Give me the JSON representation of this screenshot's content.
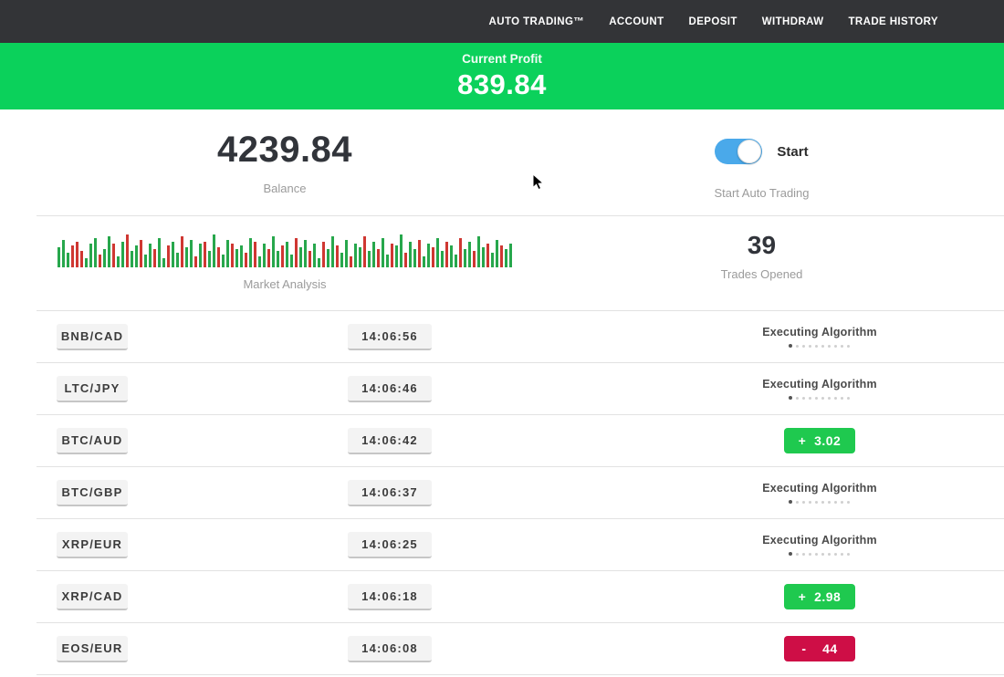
{
  "nav": {
    "items": [
      "AUTO TRADING™",
      "ACCOUNT",
      "DEPOSIT",
      "WITHDRAW",
      "TRADE HISTORY"
    ]
  },
  "profit_banner": {
    "label": "Current Profit",
    "value": "839.84"
  },
  "stats": {
    "balance": {
      "value": "4239.84",
      "label": "Balance"
    },
    "auto_trading": {
      "toggle_label": "Start",
      "label": "Start Auto Trading",
      "toggle_on": true
    },
    "market_analysis": {
      "label": "Market Analysis"
    },
    "trades_opened": {
      "value": "39",
      "label": "Trades Opened"
    }
  },
  "chart_data": {
    "type": "bar",
    "title": "Market Analysis",
    "xlabel": "",
    "ylabel": "",
    "ylim": [
      0,
      40
    ],
    "axes_hidden": true,
    "values": [
      22,
      30,
      16,
      24,
      28,
      18,
      10,
      26,
      32,
      14,
      20,
      34,
      26,
      12,
      28,
      36,
      18,
      24,
      30,
      14,
      26,
      20,
      32,
      10,
      24,
      28,
      16,
      34,
      22,
      30,
      12,
      26,
      28,
      18,
      36,
      22,
      14,
      30,
      26,
      20,
      24,
      16,
      32,
      28,
      12,
      26,
      20,
      34,
      18,
      24,
      28,
      14,
      32,
      22,
      30,
      18,
      26,
      10,
      28,
      20,
      34,
      24,
      16,
      30,
      12,
      26,
      22,
      34,
      18,
      28,
      20,
      32,
      14,
      26,
      24,
      36,
      16,
      28,
      20,
      30,
      12,
      26,
      22,
      32,
      18,
      28,
      24,
      14,
      32,
      20,
      28,
      18,
      34,
      22,
      26,
      16,
      30,
      24,
      20,
      26
    ],
    "colors": [
      "g",
      "g",
      "g",
      "r",
      "r",
      "r",
      "g",
      "g",
      "g",
      "r",
      "g",
      "g",
      "r",
      "g",
      "g",
      "r",
      "g",
      "g",
      "r",
      "g",
      "g",
      "r",
      "g",
      "g",
      "r",
      "g",
      "g",
      "r",
      "g",
      "g",
      "r",
      "g",
      "r",
      "g",
      "g",
      "r",
      "g",
      "g",
      "r",
      "g",
      "g",
      "r",
      "g",
      "r",
      "g",
      "g",
      "r",
      "g",
      "g",
      "r",
      "g",
      "g",
      "r",
      "g",
      "g",
      "r",
      "g",
      "g",
      "r",
      "g",
      "g",
      "r",
      "g",
      "g",
      "r",
      "g",
      "g",
      "r",
      "g",
      "g",
      "r",
      "g",
      "g",
      "r",
      "g",
      "g",
      "r",
      "g",
      "g",
      "r",
      "g",
      "g",
      "r",
      "g",
      "g",
      "r",
      "g",
      "g",
      "r",
      "g",
      "g",
      "r",
      "g",
      "g",
      "r",
      "g",
      "g",
      "r",
      "g",
      "g"
    ]
  },
  "trades": [
    {
      "pair": "BNB/CAD",
      "time": "14:06:56",
      "status": "executing",
      "status_label": "Executing Algorithm"
    },
    {
      "pair": "LTC/JPY",
      "time": "14:06:46",
      "status": "executing",
      "status_label": "Executing Algorithm"
    },
    {
      "pair": "BTC/AUD",
      "time": "14:06:42",
      "status": "profit",
      "result": "+  3.02"
    },
    {
      "pair": "BTC/GBP",
      "time": "14:06:37",
      "status": "executing",
      "status_label": "Executing Algorithm"
    },
    {
      "pair": "XRP/EUR",
      "time": "14:06:25",
      "status": "executing",
      "status_label": "Executing Algorithm"
    },
    {
      "pair": "XRP/CAD",
      "time": "14:06:18",
      "status": "profit",
      "result": "+  2.98"
    },
    {
      "pair": "EOS/EUR",
      "time": "14:06:08",
      "status": "loss",
      "result": "-    44"
    }
  ],
  "colors": {
    "nav_bg": "#333437",
    "banner_green": "#0bd15b",
    "badge_green": "#1fc94f",
    "badge_red": "#ce0e46",
    "toggle_blue": "#4aa9ea",
    "bar_green": "#27a74c",
    "bar_red": "#cf3732"
  }
}
